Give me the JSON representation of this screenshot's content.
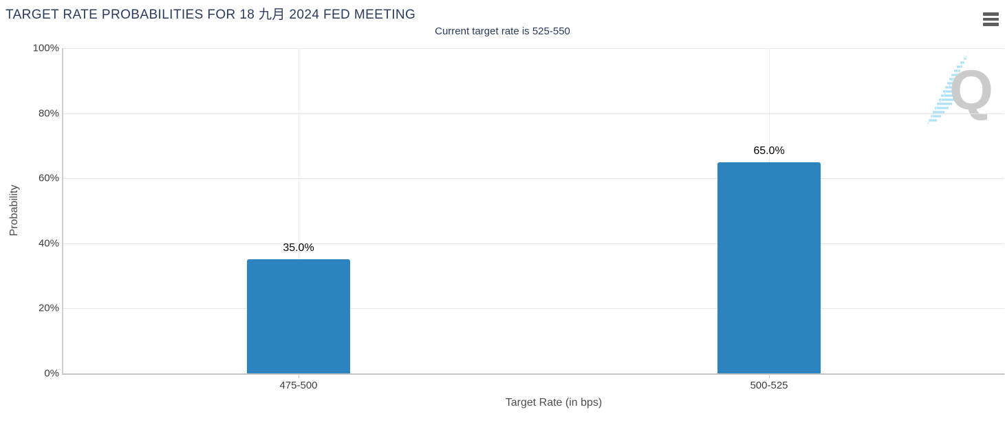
{
  "chart_data": {
    "type": "bar",
    "title": "TARGET RATE PROBABILITIES FOR 18 九月 2024 FED MEETING",
    "subtitle": "Current target rate is 525-550",
    "categories": [
      "475-500",
      "500-525"
    ],
    "values": [
      35.0,
      65.0
    ],
    "value_labels": [
      "35.0%",
      "65.0%"
    ],
    "xlabel": "Target Rate (in bps)",
    "ylabel": "Probability",
    "ylim": [
      0,
      100
    ],
    "yticks": [
      0,
      20,
      40,
      60,
      80,
      100
    ],
    "ytick_labels": [
      "0%",
      "20%",
      "40%",
      "60%",
      "80%",
      "100%"
    ],
    "grid": "on",
    "legend": "none",
    "bar_color": "#2d83bd"
  },
  "menu": {
    "icon": "hamburger-icon"
  },
  "watermark": {
    "letter": "Q",
    "q_color": "#c9c9c9",
    "hatch_color": "#a9e0f6"
  },
  "colors": {
    "title": "#2a3a5e",
    "subtitle": "#2a3a5e",
    "bar": "#2d83bd",
    "gridline": "#e6e6e6",
    "axis_line": "#c5c5c5",
    "tick_label": "#3d3d3d",
    "axis_title": "#4d4d4d",
    "value_label": "#000000",
    "menu_icon": "#5d5d5d"
  }
}
